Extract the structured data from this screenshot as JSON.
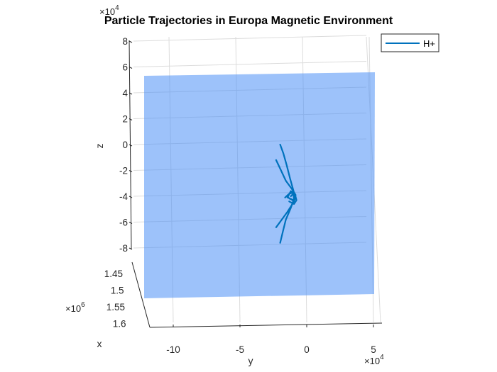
{
  "chart_data": {
    "type": "line",
    "projection": "3d",
    "title": "Particle Trajectories in Europa Magnetic Environment",
    "xlabel": "x",
    "ylabel": "y",
    "zlabel": "z",
    "x_ticks": [
      "1.45",
      "1.5",
      "1.55",
      "1.6"
    ],
    "x_exponent": "×10",
    "x_exponent_power": "6",
    "y_ticks": [
      "-10",
      "-5",
      "0",
      "5"
    ],
    "y_exponent": "×10",
    "y_exponent_power": "4",
    "z_ticks": [
      "8",
      "6",
      "4",
      "2",
      "0",
      "-2",
      "-4",
      "-6",
      "-8"
    ],
    "z_exponent": "×10",
    "z_exponent_power": "4",
    "legend": {
      "placement": "top-right",
      "entries": [
        {
          "label": "H+",
          "color": "#0072BD"
        }
      ]
    },
    "surface": {
      "color": "#4D8FF5",
      "opacity": 0.55
    },
    "series": [
      {
        "name": "H+",
        "color": "#0072BD",
        "note_units": "y and z in units of 1e4",
        "trajectories": [
          {
            "y": [
              -1.6,
              -1.2,
              -0.8,
              -0.4,
              0.0,
              0.2,
              0.1,
              -0.3
            ],
            "z": [
              0.0,
              -0.7,
              -1.6,
              -2.6,
              -3.5,
              -4.0,
              -4.4,
              -4.2
            ]
          },
          {
            "y": [
              -2.1,
              -1.5,
              -0.9,
              -0.2,
              0.3,
              0.1,
              -0.4,
              -0.8
            ],
            "z": [
              -1.2,
              -2.0,
              -2.8,
              -3.4,
              -3.9,
              -4.3,
              -4.2,
              -4.0
            ]
          },
          {
            "y": [
              -1.6,
              -1.3,
              -0.9,
              -0.3,
              0.1,
              0.0,
              -0.3
            ],
            "z": [
              -7.6,
              -6.8,
              -5.8,
              -4.9,
              -4.2,
              -3.8,
              -4.0
            ]
          },
          {
            "y": [
              -2.1,
              -1.4,
              -0.7,
              -0.1,
              0.3,
              0.1,
              -0.5,
              -1.0
            ],
            "z": [
              -6.4,
              -5.8,
              -5.2,
              -4.6,
              -4.1,
              -3.7,
              -3.8,
              -4.1
            ]
          },
          {
            "y": [
              -0.7,
              -0.3,
              0.2,
              0.4,
              0.1,
              -0.5
            ],
            "z": [
              -4.1,
              -3.6,
              -3.8,
              -4.3,
              -4.6,
              -4.4
            ]
          }
        ]
      }
    ]
  }
}
